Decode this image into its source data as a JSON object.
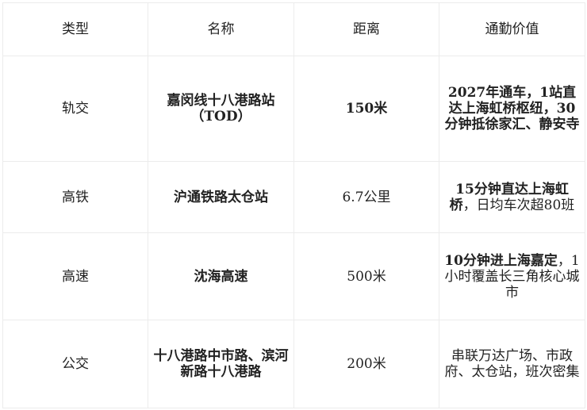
{
  "headers": [
    "类型",
    "名称",
    "距离",
    "通勤价值"
  ],
  "rows": [
    {
      "type": "轨交",
      "name": "嘉闵线十八港路站（TOD）",
      "distance": "150米",
      "distance_bold": true,
      "value_bold": "2027年通车，1站直达上海虹桥枢纽，30分钟抵徐家汇、静安寺",
      "value_normal": ""
    },
    {
      "type": "高铁",
      "name": "沪通铁路太仓站",
      "distance": "6.7公里",
      "distance_bold": false,
      "value_bold": "15分钟直达上海虹桥",
      "value_normal": "，日均车次超80班"
    },
    {
      "type": "高速",
      "name": "沈海高速",
      "distance": "500米",
      "distance_bold": false,
      "value_bold": "10分钟进上海嘉定",
      "value_normal": "，1小时覆盖长三角核心城市"
    },
    {
      "type": "公交",
      "name": "十八港路中市路、滨河新路十八港路",
      "distance": "200米",
      "distance_bold": false,
      "value_bold": "",
      "value_normal": "串联万达广场、市政府、太仓站，班次密集"
    }
  ]
}
